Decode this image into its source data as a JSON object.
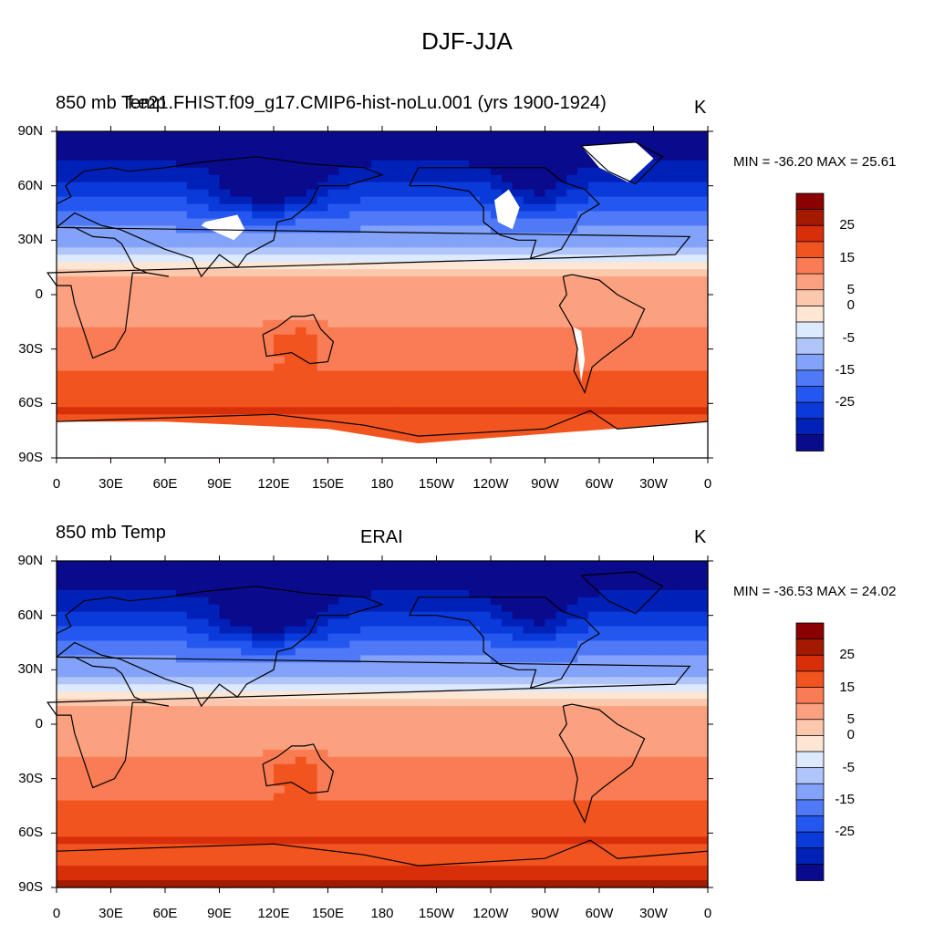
{
  "figure": {
    "title": "DJF-JJA"
  },
  "panels": [
    {
      "left_title": "850 mb Temp",
      "center_title": "f.e21.FHIST.f09_g17.CMIP6-hist-noLu.001 (yrs 1900-1924)",
      "units": "K",
      "min_max": "MIN = -36.20 MAX =  25.61"
    },
    {
      "left_title": "850 mb Temp",
      "center_title": "ERAI",
      "units": "K",
      "min_max": "MIN = -36.53 MAX =  24.02"
    }
  ],
  "colors": {
    "levels": [
      "#0a0a8c",
      "#0021b8",
      "#0a3ad9",
      "#2457f0",
      "#4f79f7",
      "#83a2f9",
      "#b0c6fb",
      "#dde9fd",
      "#fde6d4",
      "#fcc8ad",
      "#fba180",
      "#f97c55",
      "#f2541f",
      "#d82e0a",
      "#a31a00",
      "#8b0000"
    ]
  },
  "chart_data": [
    {
      "type": "heatmap",
      "title": "f.e21.FHIST.f09_g17.CMIP6-hist-noLu.001 (yrs 1900-1924)",
      "variable": "850 mb Temp",
      "units": "K",
      "min": -36.2,
      "max": 25.61,
      "x_ticks": [
        "0",
        "30E",
        "60E",
        "90E",
        "120E",
        "150E",
        "180",
        "150W",
        "120W",
        "90W",
        "60W",
        "30W",
        "0"
      ],
      "y_ticks": [
        "90N",
        "60N",
        "30N",
        "0",
        "30S",
        "60S",
        "90S"
      ],
      "xlim": [
        0,
        360
      ],
      "ylim": [
        -90,
        90
      ],
      "colorbar_labels": [
        "25",
        "15",
        "5",
        "0",
        "-5",
        "-15",
        "-25"
      ],
      "missing_regions": [
        "Tibetan Plateau",
        "Greenland",
        "Rocky Mountains",
        "Andes",
        "Antarctic interior"
      ],
      "grid": false
    },
    {
      "type": "heatmap",
      "title": "ERAI",
      "variable": "850 mb Temp",
      "units": "K",
      "min": -36.53,
      "max": 24.02,
      "x_ticks": [
        "0",
        "30E",
        "60E",
        "90E",
        "120E",
        "150E",
        "180",
        "150W",
        "120W",
        "90W",
        "60W",
        "30W",
        "0"
      ],
      "y_ticks": [
        "90N",
        "60N",
        "30N",
        "0",
        "30S",
        "60S",
        "90S"
      ],
      "xlim": [
        0,
        360
      ],
      "ylim": [
        -90,
        90
      ],
      "colorbar_labels": [
        "25",
        "15",
        "5",
        "0",
        "-5",
        "-15",
        "-25"
      ],
      "grid": false
    }
  ]
}
